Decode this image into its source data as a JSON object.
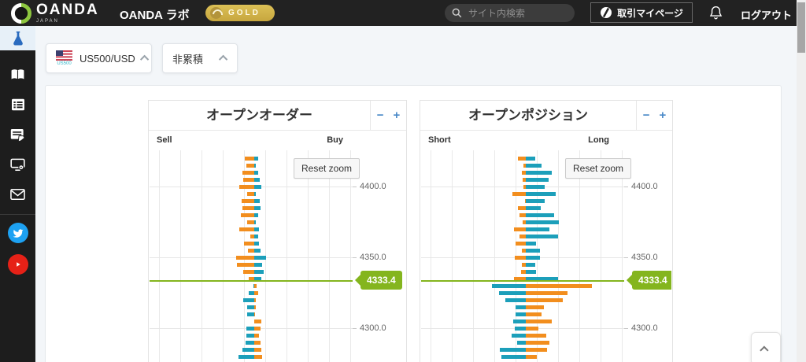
{
  "header": {
    "brand": "OANDA",
    "brand_sub": "JAPAN",
    "app_title": "OANDA ラボ",
    "plan_badge": "GOLD",
    "search_placeholder": "サイト内検索",
    "mypage_label": "取引マイページ",
    "logout_label": "ログアウト"
  },
  "sidebar": {
    "items": [
      {
        "name": "lab-flask-icon",
        "active": true
      },
      {
        "name": "book-icon"
      },
      {
        "name": "list-icon"
      },
      {
        "name": "news-edit-icon"
      },
      {
        "name": "device-settings-icon"
      },
      {
        "name": "mail-icon"
      },
      {
        "name": "twitter-icon"
      },
      {
        "name": "youtube-icon"
      }
    ]
  },
  "filters": {
    "instrument_value": "US500/USD",
    "instrument_flag_caption": "US500",
    "mode_value": "非累積"
  },
  "chart_ui": {
    "reset_zoom": "Reset zoom",
    "zoom_out": "−",
    "zoom_in": "+"
  },
  "chart_data": [
    {
      "type": "bar",
      "orientation": "horizontal-diverging",
      "title": "オープンオーダー",
      "left_label": "Sell",
      "right_label": "Buy",
      "current_price": 4333.4,
      "price_label": "4333.4",
      "y_ticks": [
        "4400.0",
        "4350.0",
        "4300.0"
      ],
      "axis_range_visible": [
        4275,
        4420
      ],
      "bucket_step": 5,
      "grid": true,
      "prices": [
        4420,
        4415,
        4410,
        4405,
        4400,
        4395,
        4390,
        4385,
        4380,
        4375,
        4370,
        4365,
        4360,
        4355,
        4350,
        4345,
        4340,
        4335,
        4330,
        4325,
        4320,
        4315,
        4310,
        4305,
        4300,
        4295,
        4290,
        4285,
        4280,
        4275
      ],
      "left_values": [
        12,
        10,
        15,
        14,
        19,
        9,
        16,
        15,
        17,
        9,
        19,
        5,
        13,
        8,
        23,
        22,
        14,
        7,
        1,
        7,
        14,
        9,
        9,
        0,
        10,
        10,
        11,
        15,
        20,
        6
      ],
      "right_values": [
        5,
        2,
        5,
        7,
        9,
        2,
        7,
        8,
        5,
        2,
        6,
        5,
        6,
        8,
        15,
        10,
        12,
        9,
        3,
        5,
        2,
        2,
        1,
        9,
        8,
        6,
        8,
        9,
        10,
        4
      ],
      "colors": {
        "above_left": "#f28e1e",
        "above_right": "#1c9fba",
        "below_left": "#1c9fba",
        "below_right": "#f28e1e",
        "price_line": "#84b51e"
      }
    },
    {
      "type": "bar",
      "orientation": "horizontal-diverging",
      "title": "オープンポジション",
      "left_label": "Short",
      "right_label": "Long",
      "current_price": 4333.4,
      "price_label": "4333.4",
      "y_ticks": [
        "4400.0",
        "4350.0",
        "4300.0"
      ],
      "axis_range_visible": [
        4275,
        4420
      ],
      "bucket_step": 5,
      "grid": true,
      "prices": [
        4420,
        4415,
        4410,
        4405,
        4400,
        4395,
        4390,
        4385,
        4380,
        4375,
        4370,
        4365,
        4360,
        4355,
        4350,
        4345,
        4340,
        4335,
        4330,
        4325,
        4320,
        4315,
        4310,
        4305,
        4300,
        4295,
        4290,
        4285,
        4280,
        4275
      ],
      "left_values": [
        10,
        3,
        5,
        4,
        3,
        17,
        1,
        10,
        8,
        4,
        15,
        8,
        13,
        5,
        14,
        5,
        6,
        15,
        43,
        34,
        26,
        13,
        13,
        16,
        14,
        18,
        11,
        33,
        31,
        8
      ],
      "right_values": [
        12,
        20,
        33,
        29,
        24,
        38,
        24,
        19,
        36,
        42,
        30,
        41,
        13,
        18,
        18,
        12,
        13,
        41,
        84,
        53,
        47,
        23,
        20,
        33,
        16,
        26,
        30,
        27,
        14,
        10
      ],
      "colors": {
        "above_left": "#f28e1e",
        "above_right": "#1c9fba",
        "below_left": "#1c9fba",
        "below_right": "#f28e1e",
        "price_line": "#84b51e"
      }
    }
  ]
}
